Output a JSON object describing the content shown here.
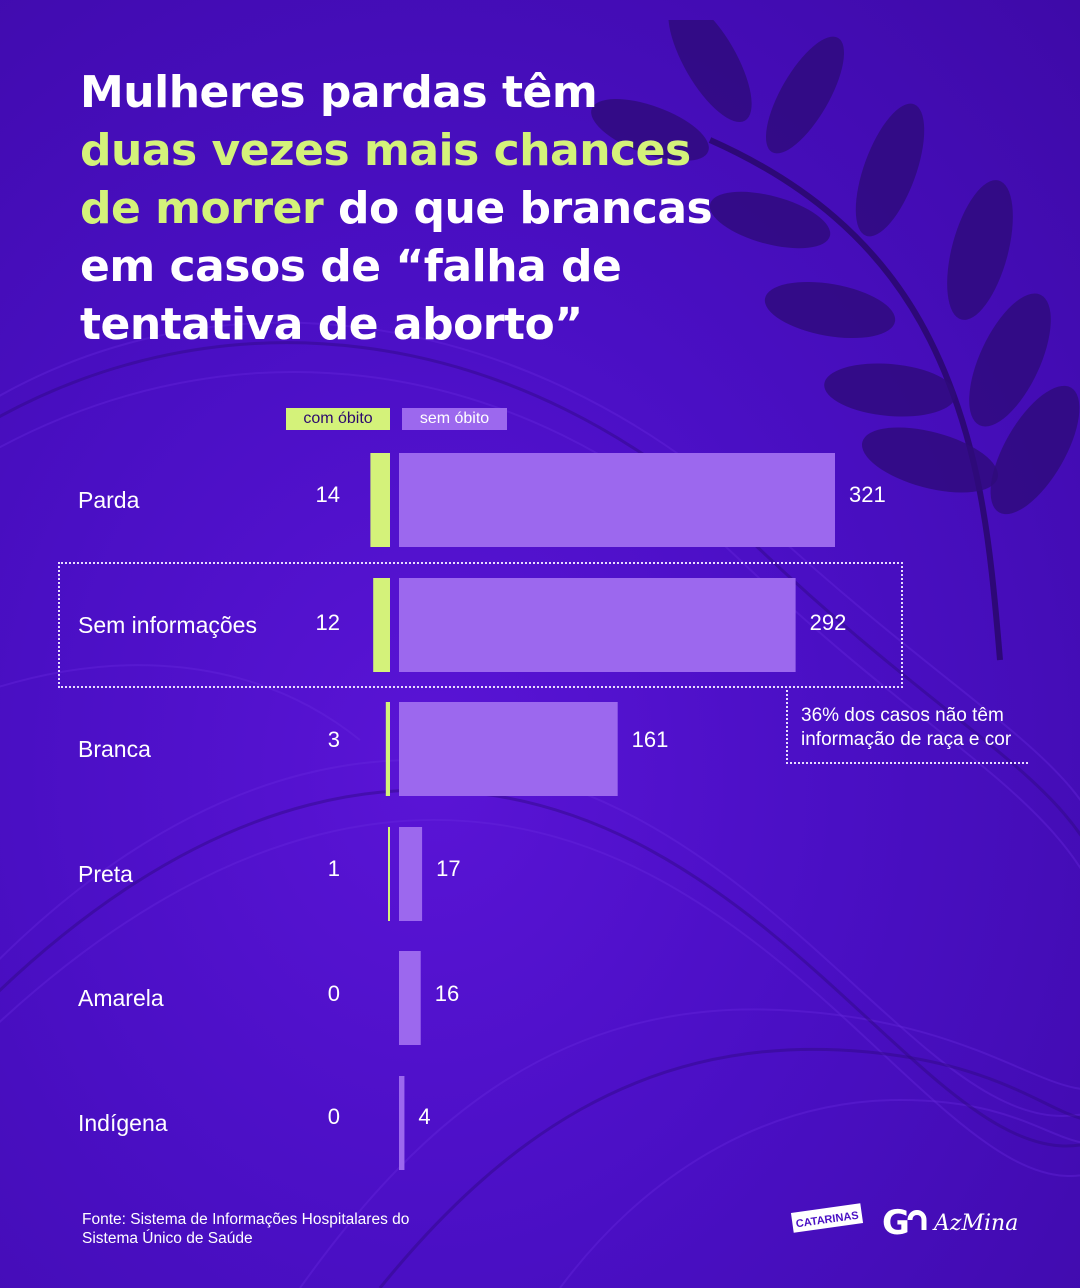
{
  "title": {
    "part1": "Mulheres pardas têm",
    "highlight": "duas vezes mais chances de morrer",
    "part2": "do que brancas em casos de “falha de tentativa de aborto”"
  },
  "legend": {
    "death": "com óbito",
    "no_death": "sem óbito"
  },
  "colors": {
    "death": "#d4f27a",
    "no_death": "#9c68ee",
    "background": "#4a0fc4"
  },
  "callout": "36% dos casos não têm informação de raça e cor",
  "source": "Fonte: Sistema de Informações Hospitalares do Sistema Único de Saúde",
  "logos": {
    "catarinas": "CATARINAS",
    "gn": "G",
    "azmina": "AzMina"
  },
  "chart_data": {
    "type": "bar",
    "categories": [
      "Parda",
      "Sem informações",
      "Branca",
      "Preta",
      "Amarela",
      "Indígena"
    ],
    "series": [
      {
        "name": "com óbito",
        "values": [
          14,
          12,
          3,
          1,
          0,
          0
        ]
      },
      {
        "name": "sem óbito",
        "values": [
          321,
          292,
          161,
          17,
          16,
          4
        ]
      }
    ],
    "highlighted_category": "Sem informações"
  }
}
